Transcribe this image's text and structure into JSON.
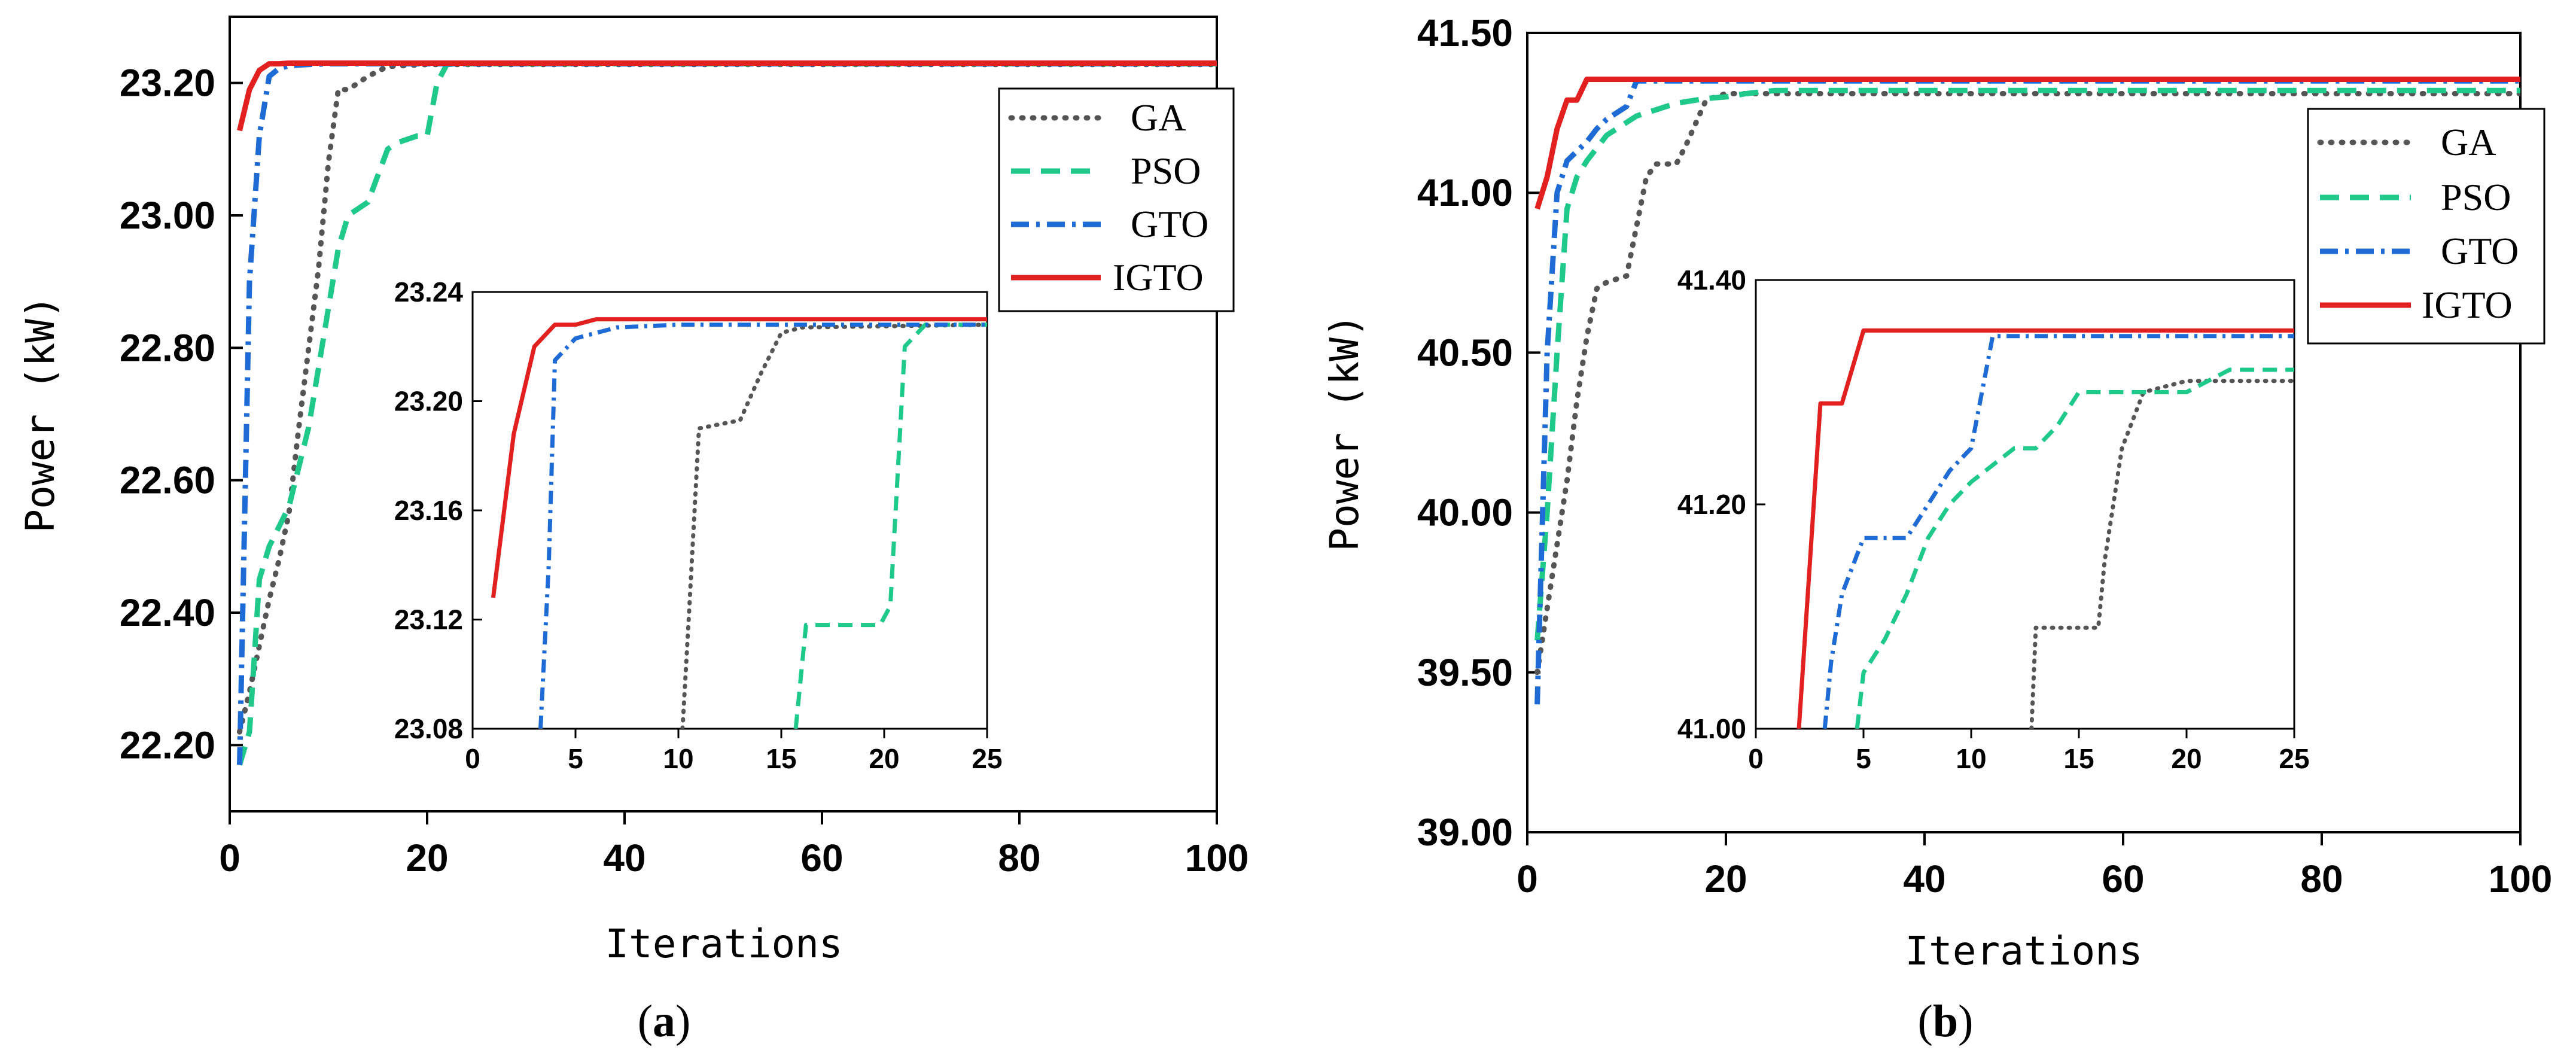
{
  "chart_data": [
    {
      "type": "line",
      "panel": "a",
      "caption": {
        "open": "(",
        "letter": "a",
        "close": ")"
      },
      "xlabel": "Iterations",
      "ylabel": "Power (kW)",
      "xlim": [
        0,
        100
      ],
      "ylim": [
        22.1,
        23.3
      ],
      "xticks": [
        "0",
        "20",
        "40",
        "60",
        "80",
        "100"
      ],
      "yticks": [
        "22.20",
        "22.40",
        "22.60",
        "22.80",
        "23.00",
        "23.20"
      ],
      "xtick_values": [
        0,
        20,
        40,
        60,
        80,
        100
      ],
      "ytick_values": [
        22.2,
        22.4,
        22.6,
        22.8,
        23.0,
        23.2
      ],
      "legend": [
        "GA",
        "PSO",
        "GTO",
        "IGTO"
      ],
      "series": [
        {
          "name": "GA",
          "color": "#555555",
          "dash": "dot",
          "x": [
            1,
            2,
            3,
            4,
            5,
            6,
            7,
            8,
            9,
            10,
            11,
            12,
            14,
            16,
            20,
            100
          ],
          "y": [
            22.22,
            22.28,
            22.35,
            22.42,
            22.48,
            22.55,
            22.68,
            22.8,
            22.92,
            23.08,
            23.19,
            23.19,
            23.21,
            23.225,
            23.228,
            23.228
          ]
        },
        {
          "name": "PSO",
          "color": "#1ec98a",
          "dash": "dash",
          "x": [
            1,
            2,
            3,
            4,
            6,
            8,
            10,
            11,
            12,
            14,
            15,
            16,
            17,
            19,
            20,
            21,
            22,
            23,
            100
          ],
          "y": [
            22.17,
            22.22,
            22.45,
            22.5,
            22.56,
            22.68,
            22.86,
            22.95,
            23.0,
            23.02,
            23.06,
            23.1,
            23.11,
            23.12,
            23.12,
            23.2,
            23.228,
            23.229,
            23.229
          ]
        },
        {
          "name": "GTO",
          "color": "#1e6bd6",
          "dash": "dashdot",
          "x": [
            1,
            2,
            3,
            4,
            5,
            6,
            8,
            10,
            20,
            100
          ],
          "y": [
            22.17,
            22.9,
            23.12,
            23.21,
            23.222,
            23.226,
            23.228,
            23.229,
            23.229,
            23.229
          ]
        },
        {
          "name": "IGTO",
          "color": "#e32020",
          "dash": "solid",
          "x": [
            1,
            2,
            3,
            4,
            5,
            6,
            7,
            100
          ],
          "y": [
            23.128,
            23.19,
            23.219,
            23.229,
            23.229,
            23.23,
            23.23,
            23.23
          ]
        }
      ],
      "inset": {
        "xlim": [
          0,
          25
        ],
        "ylim": [
          23.08,
          23.24
        ],
        "xticks": [
          "0",
          "5",
          "10",
          "15",
          "20",
          "25"
        ],
        "yticks": [
          "23.08",
          "23.12",
          "23.16",
          "23.20",
          "23.24"
        ],
        "xtick_values": [
          0,
          5,
          10,
          15,
          20,
          25
        ],
        "ytick_values": [
          23.08,
          23.12,
          23.16,
          23.2,
          23.24
        ],
        "series": [
          {
            "name": "GA",
            "color": "#555555",
            "dash": "dot",
            "x": [
              10.2,
              10.5,
              11,
              13,
              14,
              15,
              16,
              25
            ],
            "y": [
              23.08,
              23.12,
              23.19,
              23.193,
              23.21,
              23.225,
              23.227,
              23.228
            ]
          },
          {
            "name": "PSO",
            "color": "#1ec98a",
            "dash": "dash",
            "x": [
              15.7,
              16.2,
              17,
              19.8,
              20.3,
              21,
              22,
              25
            ],
            "y": [
              23.08,
              23.118,
              23.118,
              23.118,
              23.125,
              23.22,
              23.228,
              23.228
            ]
          },
          {
            "name": "GTO",
            "color": "#1e6bd6",
            "dash": "dashdot",
            "x": [
              3.3,
              3.7,
              4,
              5,
              7,
              10,
              25
            ],
            "y": [
              23.08,
              23.14,
              23.215,
              23.223,
              23.227,
              23.228,
              23.228
            ]
          },
          {
            "name": "IGTO",
            "color": "#e32020",
            "dash": "solid",
            "x": [
              1,
              2,
              3,
              4,
              5,
              6,
              25
            ],
            "y": [
              23.128,
              23.188,
              23.22,
              23.228,
              23.228,
              23.23,
              23.23
            ]
          }
        ]
      }
    },
    {
      "type": "line",
      "panel": "b",
      "caption": {
        "open": "(",
        "letter": "b",
        "close": ")"
      },
      "xlabel": "Iterations",
      "ylabel": "Power (kW)",
      "xlim": [
        0,
        100
      ],
      "ylim": [
        39.0,
        41.5
      ],
      "xticks": [
        "0",
        "20",
        "40",
        "60",
        "80",
        "100"
      ],
      "yticks": [
        "39.00",
        "39.50",
        "40.00",
        "40.50",
        "41.00",
        "41.50"
      ],
      "xtick_values": [
        0,
        20,
        40,
        60,
        80,
        100
      ],
      "ytick_values": [
        39.0,
        39.5,
        40.0,
        40.5,
        41.0,
        41.5
      ],
      "legend": [
        "GA",
        "PSO",
        "GTO",
        "IGTO"
      ],
      "series": [
        {
          "name": "GA",
          "color": "#555555",
          "dash": "dot",
          "x": [
            1,
            2,
            3,
            4,
            5,
            6,
            7,
            8,
            10,
            12,
            13,
            15,
            16,
            18,
            20,
            100
          ],
          "y": [
            39.5,
            39.7,
            39.9,
            40.1,
            40.35,
            40.55,
            40.7,
            40.72,
            40.74,
            41.05,
            41.09,
            41.09,
            41.15,
            41.29,
            41.31,
            41.31
          ]
        },
        {
          "name": "PSO",
          "color": "#1ec98a",
          "dash": "dash",
          "x": [
            1,
            2,
            3,
            4,
            5,
            6,
            8,
            10,
            11,
            13,
            15,
            18,
            20,
            22,
            25,
            100
          ],
          "y": [
            39.6,
            40.0,
            40.5,
            40.95,
            41.05,
            41.1,
            41.18,
            41.22,
            41.24,
            41.26,
            41.28,
            41.295,
            41.3,
            41.31,
            41.32,
            41.32
          ]
        },
        {
          "name": "GTO",
          "color": "#1e6bd6",
          "dash": "dashdot",
          "x": [
            1,
            2,
            3,
            4,
            5,
            6,
            7,
            8,
            10,
            11,
            100
          ],
          "y": [
            39.4,
            40.5,
            41.0,
            41.1,
            41.13,
            41.16,
            41.2,
            41.23,
            41.27,
            41.35,
            41.35
          ]
        },
        {
          "name": "IGTO",
          "color": "#e32020",
          "dash": "solid",
          "x": [
            1,
            2,
            3,
            4,
            5,
            6,
            100
          ],
          "y": [
            40.95,
            41.05,
            41.2,
            41.29,
            41.29,
            41.355,
            41.355
          ]
        }
      ],
      "inset": {
        "xlim": [
          0,
          25
        ],
        "ylim": [
          41.0,
          41.4
        ],
        "xticks": [
          "0",
          "5",
          "10",
          "15",
          "20",
          "25"
        ],
        "yticks": [
          "41.00",
          "41.20",
          "41.40"
        ],
        "xtick_values": [
          0,
          5,
          10,
          15,
          20,
          25
        ],
        "ytick_values": [
          41.0,
          41.2,
          41.4
        ],
        "series": [
          {
            "name": "GA",
            "color": "#555555",
            "dash": "dot",
            "x": [
              12.8,
              13,
              15.9,
              16.2,
              17,
              18,
              20,
              25
            ],
            "y": [
              41.0,
              41.09,
              41.09,
              41.15,
              41.25,
              41.3,
              41.31,
              41.31
            ]
          },
          {
            "name": "PSO",
            "color": "#1ec98a",
            "dash": "dash",
            "x": [
              4.7,
              5,
              6,
              7,
              8,
              9,
              10,
              12,
              13,
              14,
              15,
              20,
              21,
              22,
              25
            ],
            "y": [
              41.0,
              41.05,
              41.08,
              41.12,
              41.17,
              41.2,
              41.22,
              41.25,
              41.25,
              41.27,
              41.3,
              41.3,
              41.31,
              41.32,
              41.32
            ]
          },
          {
            "name": "GTO",
            "color": "#1e6bd6",
            "dash": "dashdot",
            "x": [
              3.2,
              3.5,
              4,
              5,
              6,
              7,
              8,
              9,
              10,
              11,
              25
            ],
            "y": [
              41.0,
              41.06,
              41.12,
              41.17,
              41.17,
              41.17,
              41.2,
              41.23,
              41.25,
              41.35,
              41.35
            ]
          },
          {
            "name": "IGTO",
            "color": "#e32020",
            "dash": "solid",
            "x": [
              2,
              3,
              4,
              5,
              6,
              25
            ],
            "y": [
              41.0,
              41.29,
              41.29,
              41.355,
              41.355,
              41.355
            ]
          }
        ]
      }
    }
  ]
}
